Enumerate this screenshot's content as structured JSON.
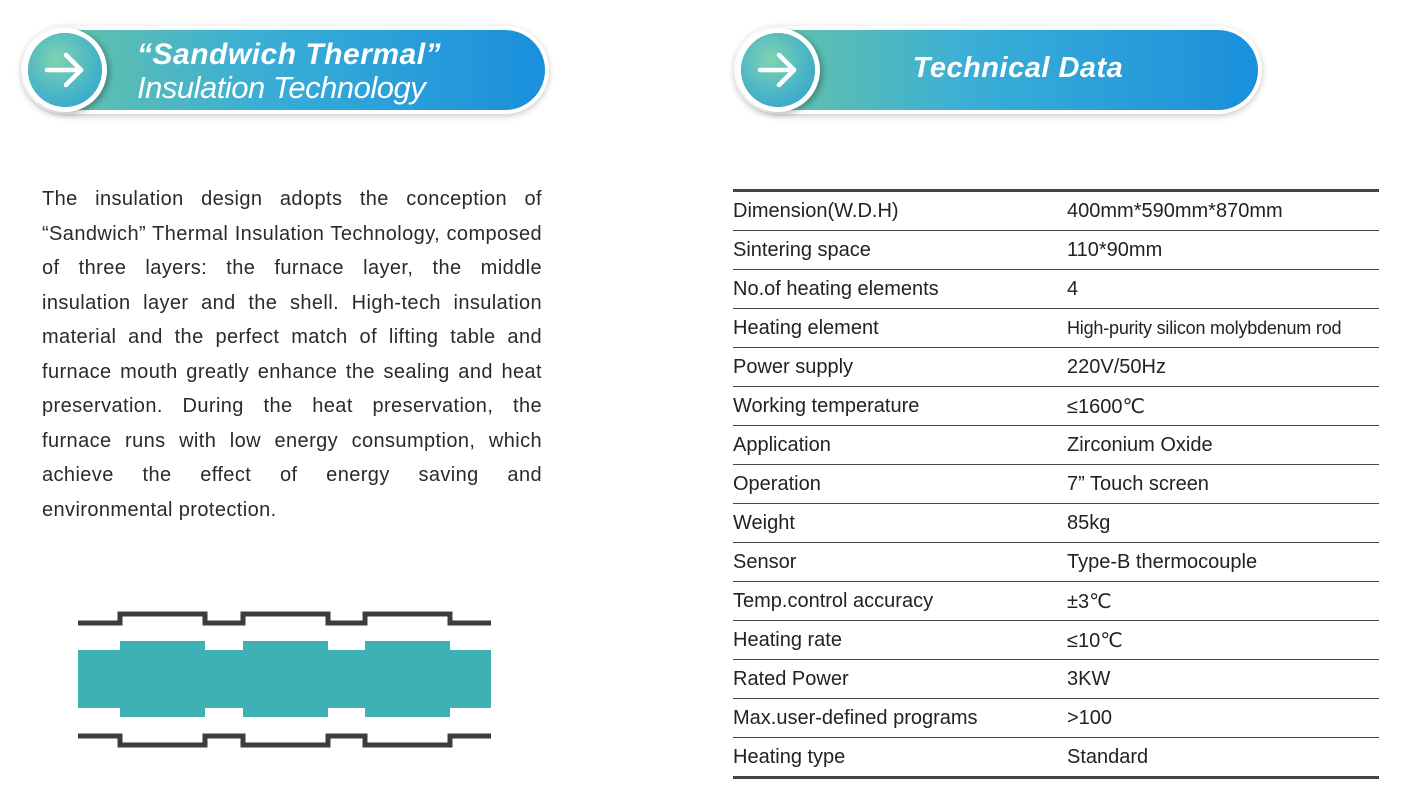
{
  "left_section": {
    "title_line1": "“Sandwich  Thermal”",
    "title_line2": "Insulation Technology",
    "description": "The insulation design adopts the conception of “Sandwich” Thermal Insulation Technology, composed of three layers: the furnace layer, the middle insulation layer and the shell. High-tech insulation material and the perfect match of lifting table and furnace mouth greatly enhance the sealing and heat preservation. During the heat preservation, the furnace runs with low energy consumption, which achieve the effect of energy saving and environmental protection.",
    "arrow_icon": "arrow-right-icon",
    "diagram_color": "#3fb0b3"
  },
  "right_section": {
    "title": "Technical Data",
    "arrow_icon": "arrow-right-icon"
  },
  "specs": [
    {
      "label": "Dimension(W.D.H)",
      "value": "400mm*590mm*870mm"
    },
    {
      "label": "Sintering space",
      "value": "110*90mm"
    },
    {
      "label": "No.of heating elements",
      "value": "4"
    },
    {
      "label": "Heating element",
      "value": "High-purity silicon molybdenum rod"
    },
    {
      "label": "Power supply",
      "value": "220V/50Hz"
    },
    {
      "label": "Working temperature",
      "value": "≤1600℃"
    },
    {
      "label": "Application",
      "value": "Zirconium Oxide"
    },
    {
      "label": "Operation",
      "value": "7” Touch screen"
    },
    {
      "label": "Weight",
      "value": "85kg"
    },
    {
      "label": "Sensor",
      "value": "Type-B thermocouple"
    },
    {
      "label": "Temp.control accuracy",
      "value": "±3℃"
    },
    {
      "label": "Heating rate",
      "value": "≤10℃"
    },
    {
      "label": "Rated Power",
      "value": "3KW"
    },
    {
      "label": "Max.user-defined programs",
      "value": ">100"
    },
    {
      "label": "Heating type",
      "value": "Standard"
    }
  ],
  "colors": {
    "banner_start": "#6cc6a2",
    "banner_end": "#1a8fdc",
    "rule": "#444444"
  }
}
